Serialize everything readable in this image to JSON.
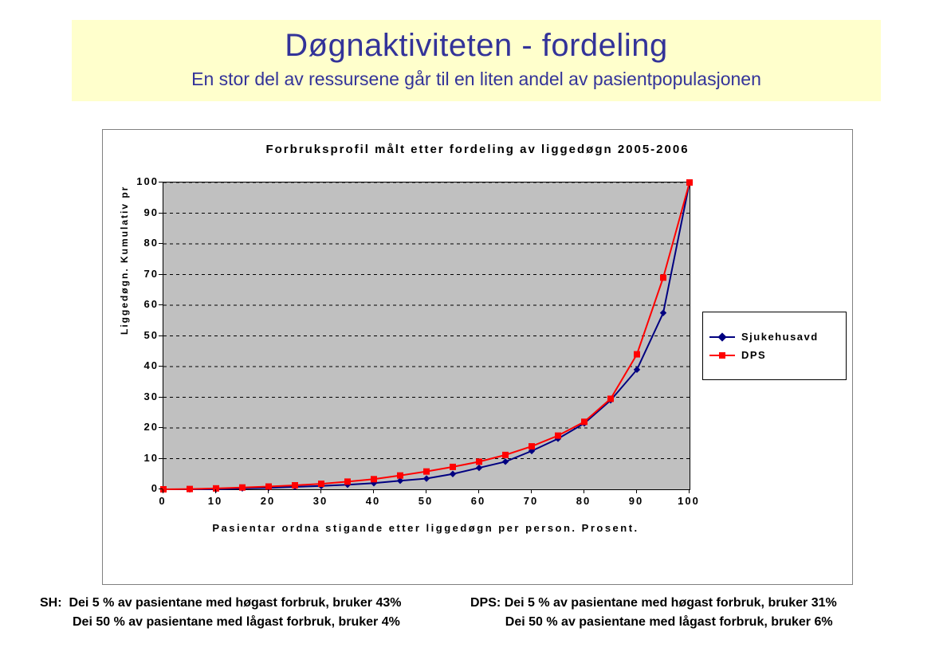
{
  "header": {
    "title": "Døgnaktiviteten - fordeling",
    "subtitle": "En stor del av ressursene går til en liten andel av pasientpopulasjonen",
    "bg_color": "#ffffcc",
    "title_color": "#333399",
    "title_fontsize": 40,
    "subtitle_fontsize": 23
  },
  "chart": {
    "type": "line",
    "title": "Forbruksprofil målt etter fordeling av liggedøgn 2005-2006",
    "title_fontsize": 15,
    "plot_bg": "#c0c0c0",
    "chart_bg": "#ffffff",
    "border_color": "#808080",
    "grid_color": "#000000",
    "grid_dash": true,
    "x_axis": {
      "label": "Pasientar ordna stigande etter liggedøgn per person. Prosent.",
      "min": 0,
      "max": 100,
      "tick_step": 10,
      "ticks": [
        0,
        10,
        20,
        30,
        40,
        50,
        60,
        70,
        80,
        90,
        100
      ],
      "fontsize": 13
    },
    "y_axis": {
      "label": "Liggedøgn. Kumulativ pr",
      "min": 0,
      "max": 100,
      "tick_step": 10,
      "ticks": [
        0,
        10,
        20,
        30,
        40,
        50,
        60,
        70,
        80,
        90,
        100
      ],
      "fontsize": 13
    },
    "series": [
      {
        "name": "Sjukehusavd",
        "color": "#000080",
        "marker": "diamond",
        "marker_size": 7,
        "line_width": 2,
        "x": [
          0,
          5,
          10,
          15,
          20,
          25,
          30,
          35,
          40,
          45,
          50,
          55,
          60,
          65,
          70,
          75,
          80,
          85,
          90,
          95,
          100
        ],
        "y": [
          0,
          0,
          0,
          0.3,
          0.5,
          0.8,
          1.1,
          1.5,
          2.0,
          2.8,
          3.5,
          5.0,
          7.0,
          9.0,
          12.5,
          16.5,
          21.5,
          29.0,
          39.0,
          57.5,
          100
        ]
      },
      {
        "name": "DPS",
        "color": "#ff0000",
        "marker": "square",
        "marker_size": 7,
        "line_width": 2,
        "x": [
          0,
          5,
          10,
          15,
          20,
          25,
          30,
          35,
          40,
          45,
          50,
          55,
          60,
          65,
          70,
          75,
          80,
          85,
          90,
          95,
          100
        ],
        "y": [
          0,
          0.1,
          0.3,
          0.6,
          0.9,
          1.3,
          1.8,
          2.5,
          3.3,
          4.5,
          5.8,
          7.3,
          9.0,
          11.2,
          14.0,
          17.5,
          22.0,
          29.5,
          44.0,
          69.0,
          100
        ]
      }
    ],
    "legend": {
      "position": "right",
      "bg": "#ffffff",
      "border": "#000000",
      "fontsize": 13
    }
  },
  "footer": {
    "sh_label": "SH:",
    "dps_label": "DPS:",
    "sh_line1": "Dei 5 % av pasientane med høgast forbruk, bruker 43%",
    "sh_line2": "Dei 50 % av pasientane med lågast forbruk, bruker  4%",
    "dps_line1": "Dei 5 % av pasientane med høgast forbruk, bruker 31%",
    "dps_line2": "Dei 50 % av pasientane med lågast forbruk, bruker  6%",
    "fontsize": 16
  }
}
